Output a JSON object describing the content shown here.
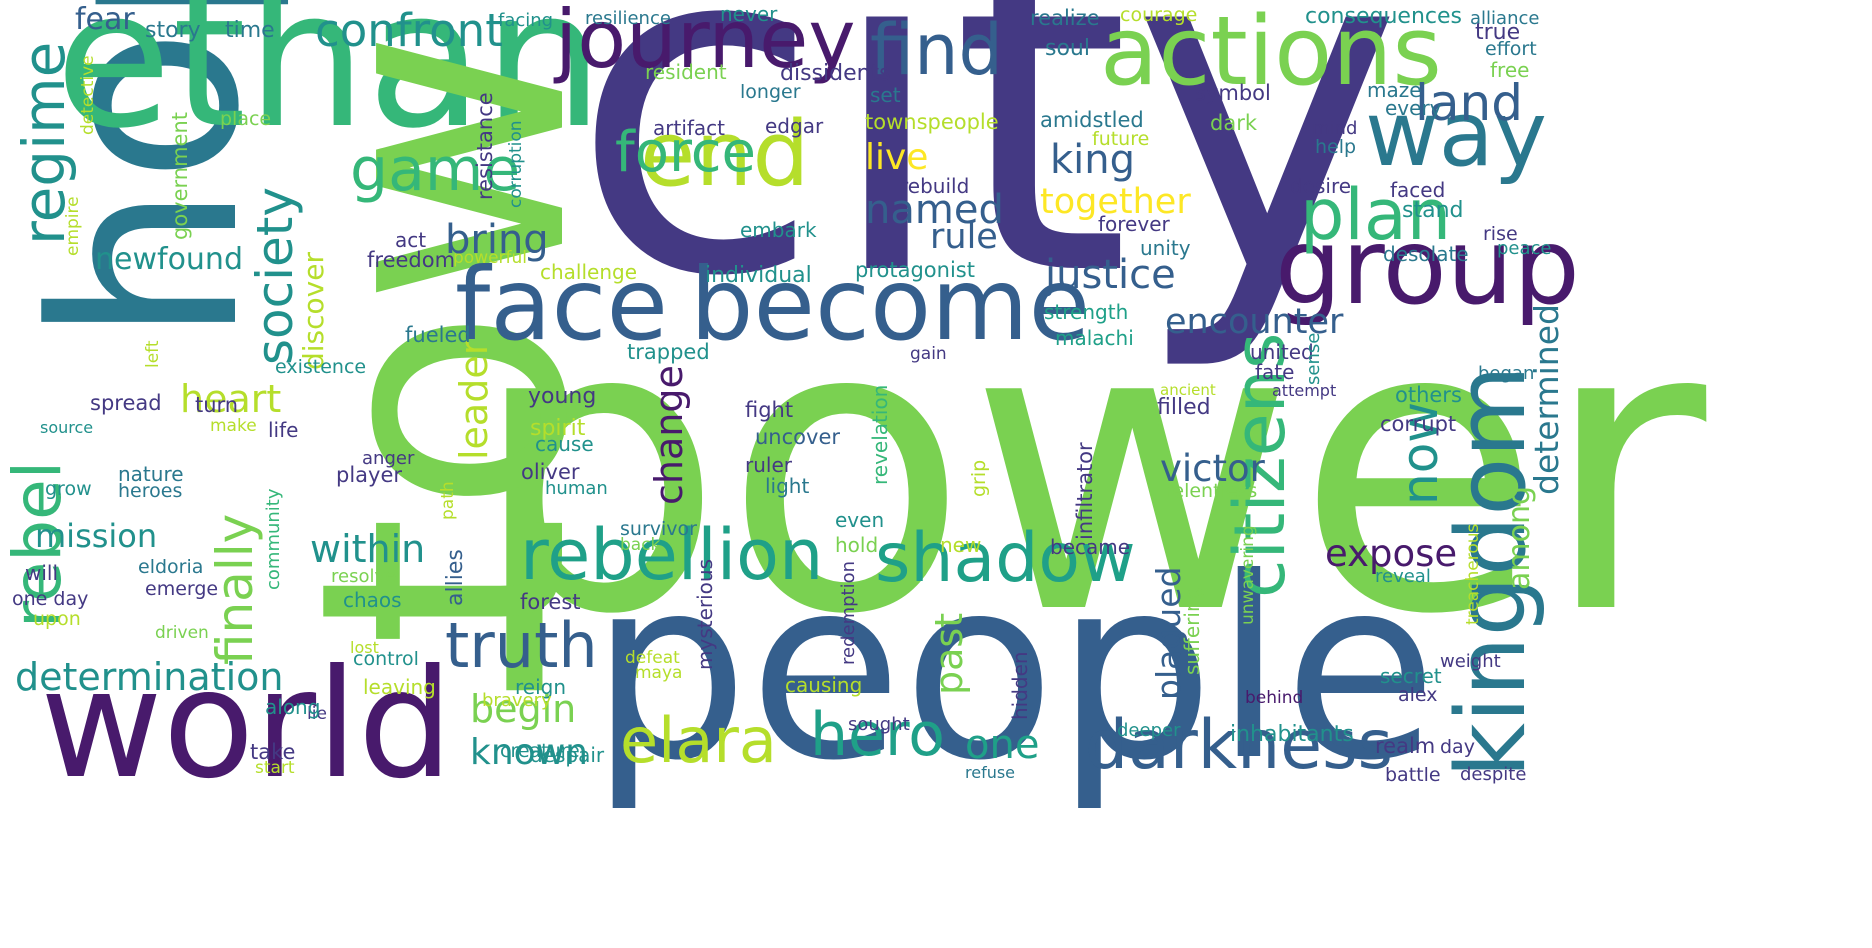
{
  "palette": {
    "navy": "#443983",
    "dark": "#481a6c",
    "blue": "#355f8d",
    "teal": "#2a788e",
    "mid": "#21918c",
    "sea": "#1fa088",
    "green": "#35b779",
    "lime": "#7ad151",
    "yellowgreen": "#b5de2b",
    "yellow": "#fde725"
  },
  "words": [
    {
      "text": "city",
      "c": "navy"
    },
    {
      "text": "power",
      "c": "lime"
    },
    {
      "text": "people",
      "c": "blue"
    },
    {
      "text": "hope",
      "c": "teal"
    },
    {
      "text": "ethan",
      "c": "green"
    },
    {
      "text": "town",
      "c": "lime"
    },
    {
      "text": "world",
      "c": "dark"
    },
    {
      "text": "face",
      "c": "blue"
    },
    {
      "text": "become",
      "c": "blue"
    },
    {
      "text": "actions",
      "c": "lime"
    },
    {
      "text": "journey",
      "c": "dark"
    },
    {
      "text": "end",
      "c": "yellowgreen"
    },
    {
      "text": "group",
      "c": "dark"
    },
    {
      "text": "kingdom",
      "c": "teal"
    },
    {
      "text": "way",
      "c": "teal"
    },
    {
      "text": "find",
      "c": "blue"
    },
    {
      "text": "rebellion",
      "c": "sea"
    },
    {
      "text": "shadow",
      "c": "sea"
    },
    {
      "text": "darkness",
      "c": "blue"
    },
    {
      "text": "truth",
      "c": "blue"
    },
    {
      "text": "elara",
      "c": "yellowgreen"
    },
    {
      "text": "hero",
      "c": "sea"
    },
    {
      "text": "citizens",
      "c": "green"
    },
    {
      "text": "plan",
      "c": "green"
    },
    {
      "text": "rebel",
      "c": "green"
    },
    {
      "text": "regime",
      "c": "mid"
    },
    {
      "text": "game",
      "c": "green"
    },
    {
      "text": "force",
      "c": "green"
    },
    {
      "text": "confront",
      "c": "mid"
    },
    {
      "text": "land",
      "c": "blue"
    },
    {
      "text": "society",
      "c": "mid"
    },
    {
      "text": "finally",
      "c": "lime"
    },
    {
      "text": "now",
      "c": "mid"
    },
    {
      "text": "determination",
      "c": "mid"
    },
    {
      "text": "change",
      "c": "dark"
    },
    {
      "text": "leader",
      "c": "yellowgreen"
    },
    {
      "text": "justice",
      "c": "blue"
    },
    {
      "text": "encounter",
      "c": "blue"
    },
    {
      "text": "determined",
      "c": "teal"
    },
    {
      "text": "victor",
      "c": "blue"
    },
    {
      "text": "expose",
      "c": "dark"
    },
    {
      "text": "plagued",
      "c": "blue"
    },
    {
      "text": "king",
      "c": "blue"
    },
    {
      "text": "named",
      "c": "blue"
    },
    {
      "text": "rule",
      "c": "blue"
    },
    {
      "text": "bring",
      "c": "blue"
    },
    {
      "text": "heart",
      "c": "yellowgreen"
    },
    {
      "text": "within",
      "c": "mid"
    },
    {
      "text": "mission",
      "c": "mid"
    },
    {
      "text": "begin",
      "c": "lime"
    },
    {
      "text": "known",
      "c": "mid"
    },
    {
      "text": "one",
      "c": "sea"
    },
    {
      "text": "past",
      "c": "lime"
    },
    {
      "text": "live",
      "c": "yellow"
    },
    {
      "text": "together",
      "c": "yellow"
    },
    {
      "text": "discover",
      "c": "yellowgreen"
    },
    {
      "text": "newfound",
      "c": "mid"
    },
    {
      "text": "among",
      "c": "lime"
    },
    {
      "text": "fear",
      "c": "blue"
    },
    {
      "text": "story",
      "c": "teal"
    },
    {
      "text": "time",
      "c": "teal"
    },
    {
      "text": "facing",
      "c": "mid"
    },
    {
      "text": "resilience",
      "c": "teal"
    },
    {
      "text": "never",
      "c": "mid"
    },
    {
      "text": "realize",
      "c": "teal"
    },
    {
      "text": "courage",
      "c": "yellowgreen"
    },
    {
      "text": "consequences",
      "c": "mid"
    },
    {
      "text": "alliance",
      "c": "teal"
    },
    {
      "text": "true",
      "c": "navy"
    },
    {
      "text": "effort",
      "c": "teal"
    },
    {
      "text": "free",
      "c": "lime"
    },
    {
      "text": "resident",
      "c": "lime"
    },
    {
      "text": "dissidents",
      "c": "navy"
    },
    {
      "text": "soul",
      "c": "teal"
    },
    {
      "text": "maze",
      "c": "teal"
    },
    {
      "text": "longer",
      "c": "teal"
    },
    {
      "text": "set",
      "c": "teal"
    },
    {
      "text": "symbol",
      "c": "navy"
    },
    {
      "text": "every",
      "c": "teal"
    },
    {
      "text": "amidstled",
      "c": "teal"
    },
    {
      "text": "artifact",
      "c": "navy"
    },
    {
      "text": "edgar",
      "c": "navy"
    },
    {
      "text": "townspeople",
      "c": "yellowgreen"
    },
    {
      "text": "future",
      "c": "yellowgreen"
    },
    {
      "text": "dark",
      "c": "lime"
    },
    {
      "text": "mind",
      "c": "navy"
    },
    {
      "text": "help",
      "c": "teal"
    },
    {
      "text": "desire",
      "c": "navy"
    },
    {
      "text": "faced",
      "c": "navy"
    },
    {
      "text": "stand",
      "c": "mid"
    },
    {
      "text": "rebuild",
      "c": "navy"
    },
    {
      "text": "forever",
      "c": "navy"
    },
    {
      "text": "rise",
      "c": "navy"
    },
    {
      "text": "peace",
      "c": "mid"
    },
    {
      "text": "desolate",
      "c": "teal"
    },
    {
      "text": "unity",
      "c": "teal"
    },
    {
      "text": "act",
      "c": "navy"
    },
    {
      "text": "embark",
      "c": "mid"
    },
    {
      "text": "freedom",
      "c": "navy"
    },
    {
      "text": "powerful",
      "c": "yellowgreen"
    },
    {
      "text": "challenge",
      "c": "yellowgreen"
    },
    {
      "text": "individual",
      "c": "mid"
    },
    {
      "text": "protagonist",
      "c": "mid"
    },
    {
      "text": "strength",
      "c": "sea"
    },
    {
      "text": "malachi",
      "c": "sea"
    },
    {
      "text": "united",
      "c": "navy"
    },
    {
      "text": "fate",
      "c": "navy"
    },
    {
      "text": "fueled",
      "c": "teal"
    },
    {
      "text": "trapped",
      "c": "mid"
    },
    {
      "text": "gain",
      "c": "navy"
    },
    {
      "text": "existence",
      "c": "mid"
    },
    {
      "text": "sense",
      "c": "mid"
    },
    {
      "text": "ancient",
      "c": "yellowgreen"
    },
    {
      "text": "attempt",
      "c": "navy"
    },
    {
      "text": "began",
      "c": "teal"
    },
    {
      "text": "others",
      "c": "mid"
    },
    {
      "text": "spread",
      "c": "navy"
    },
    {
      "text": "turn",
      "c": "navy"
    },
    {
      "text": "young",
      "c": "navy"
    },
    {
      "text": "fight",
      "c": "navy"
    },
    {
      "text": "filled",
      "c": "navy"
    },
    {
      "text": "corrupt",
      "c": "navy"
    },
    {
      "text": "source",
      "c": "mid"
    },
    {
      "text": "make",
      "c": "yellowgreen"
    },
    {
      "text": "life",
      "c": "navy"
    },
    {
      "text": "spirit",
      "c": "yellowgreen"
    },
    {
      "text": "cause",
      "c": "mid"
    },
    {
      "text": "uncover",
      "c": "blue"
    },
    {
      "text": "anger",
      "c": "navy"
    },
    {
      "text": "ruler",
      "c": "navy"
    },
    {
      "text": "nature",
      "c": "teal"
    },
    {
      "text": "player",
      "c": "navy"
    },
    {
      "text": "oliver",
      "c": "navy"
    },
    {
      "text": "light",
      "c": "teal"
    },
    {
      "text": "grow",
      "c": "mid"
    },
    {
      "text": "heroes",
      "c": "teal"
    },
    {
      "text": "human",
      "c": "mid"
    },
    {
      "text": "relentless",
      "c": "lime"
    },
    {
      "text": "survivor",
      "c": "teal"
    },
    {
      "text": "even",
      "c": "mid"
    },
    {
      "text": "hold",
      "c": "lime"
    },
    {
      "text": "new",
      "c": "yellowgreen"
    },
    {
      "text": "became",
      "c": "navy"
    },
    {
      "text": "will",
      "c": "navy"
    },
    {
      "text": "back",
      "c": "lime"
    },
    {
      "text": "resolve",
      "c": "lime"
    },
    {
      "text": "reveal",
      "c": "mid"
    },
    {
      "text": "eldoria",
      "c": "teal"
    },
    {
      "text": "one day",
      "c": "navy"
    },
    {
      "text": "emerge",
      "c": "navy"
    },
    {
      "text": "chaos",
      "c": "mid"
    },
    {
      "text": "forest",
      "c": "navy"
    },
    {
      "text": "upon",
      "c": "yellowgreen"
    },
    {
      "text": "driven",
      "c": "lime"
    },
    {
      "text": "lost",
      "c": "yellowgreen"
    },
    {
      "text": "control",
      "c": "mid"
    },
    {
      "text": "defeat",
      "c": "yellowgreen"
    },
    {
      "text": "maya",
      "c": "yellowgreen"
    },
    {
      "text": "weight",
      "c": "navy"
    },
    {
      "text": "leaving",
      "c": "yellowgreen"
    },
    {
      "text": "reign",
      "c": "mid"
    },
    {
      "text": "causing",
      "c": "yellowgreen"
    },
    {
      "text": "secret",
      "c": "mid"
    },
    {
      "text": "alex",
      "c": "navy"
    },
    {
      "text": "lie",
      "c": "navy"
    },
    {
      "text": "bravery",
      "c": "yellowgreen"
    },
    {
      "text": "behind",
      "c": "dark"
    },
    {
      "text": "along",
      "c": "mid"
    },
    {
      "text": "despair",
      "c": "mid"
    },
    {
      "text": "sought",
      "c": "navy"
    },
    {
      "text": "deeper",
      "c": "mid"
    },
    {
      "text": "inhabitants",
      "c": "mid"
    },
    {
      "text": "day",
      "c": "navy"
    },
    {
      "text": "take",
      "c": "navy"
    },
    {
      "text": "creature",
      "c": "mid"
    },
    {
      "text": "realm",
      "c": "navy"
    },
    {
      "text": "start",
      "c": "yellowgreen"
    },
    {
      "text": "refuse",
      "c": "teal"
    },
    {
      "text": "battle",
      "c": "navy"
    },
    {
      "text": "despite",
      "c": "navy"
    },
    {
      "text": "left",
      "c": "yellowgreen"
    },
    {
      "text": "detective",
      "c": "yellowgreen"
    },
    {
      "text": "place",
      "c": "lime"
    },
    {
      "text": "government",
      "c": "lime"
    },
    {
      "text": "empire",
      "c": "yellowgreen"
    },
    {
      "text": "resistance",
      "c": "navy"
    },
    {
      "text": "corruption",
      "c": "mid"
    },
    {
      "text": "revelation",
      "c": "green"
    },
    {
      "text": "infiltrator",
      "c": "navy"
    },
    {
      "text": "grip",
      "c": "yellowgreen"
    },
    {
      "text": "community",
      "c": "green"
    },
    {
      "text": "path",
      "c": "yellowgreen"
    },
    {
      "text": "allies",
      "c": "blue"
    },
    {
      "text": "mysterious",
      "c": "navy"
    },
    {
      "text": "redemption",
      "c": "navy"
    },
    {
      "text": "hidden",
      "c": "navy"
    },
    {
      "text": "suffering",
      "c": "lime"
    },
    {
      "text": "unwavering",
      "c": "lime"
    },
    {
      "text": "treacherous",
      "c": "yellowgreen"
    }
  ]
}
